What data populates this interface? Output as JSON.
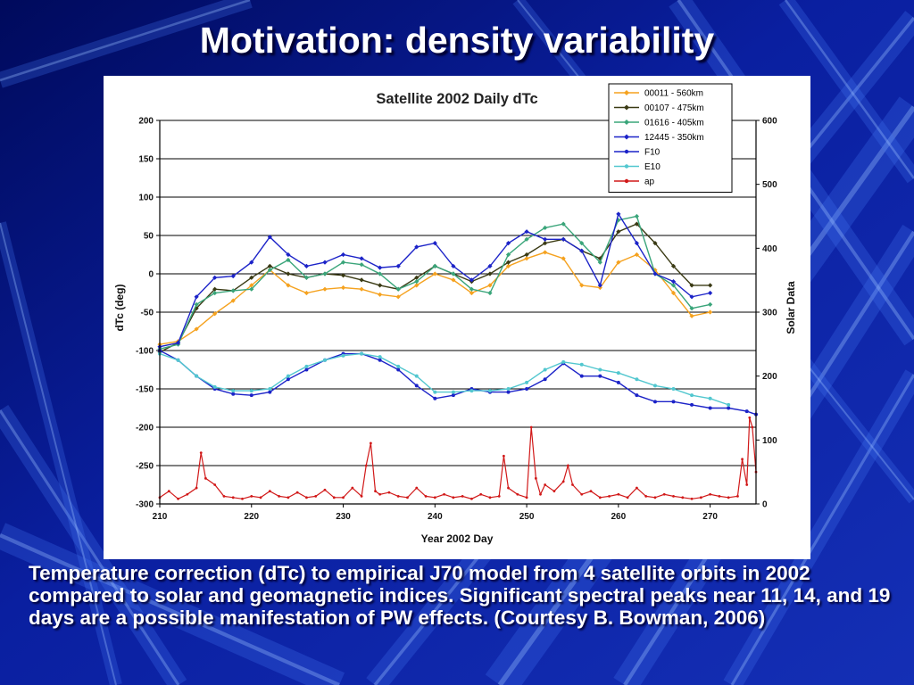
{
  "slide": {
    "title": "Motivation: density variability",
    "caption": "Temperature correction (dTc) to empirical J70 model from 4 satellite orbits in 2002 compared to solar and geomagnetic indices. Significant spectral  peaks near 11, 14, and 19 days are a possible manifestation of PW effects. (Courtesy B. Bowman, 2006)"
  },
  "colors": {
    "background_dark": "#000a5c",
    "background_light": "#2a5ce0",
    "series_00011": "#f5a21f",
    "series_00107": "#3a3a14",
    "series_01616": "#3aa57a",
    "series_12445": "#1c23c8",
    "series_F10": "#1c23c8",
    "series_E10": "#52c7cf",
    "series_ap": "#d11919"
  },
  "chart_data": {
    "type": "line",
    "title": "Satellite 2002 Daily dTc",
    "xlabel": "Year 2002 Day",
    "ylabel": "dTc (deg)",
    "y2label": "Solar Data",
    "xlim": [
      210,
      275
    ],
    "ylim": [
      -300,
      200
    ],
    "y2lim": [
      0,
      600
    ],
    "xticks": [
      210,
      220,
      230,
      240,
      250,
      260,
      270
    ],
    "yticks": [
      200,
      150,
      100,
      50,
      0,
      -50,
      -100,
      -150,
      -200,
      -250,
      -300
    ],
    "y2ticks": [
      600,
      500,
      400,
      300,
      200,
      100,
      0
    ],
    "grid": "horizontal",
    "legend_position": "top-right",
    "series": [
      {
        "name": "00011 - 560km",
        "axis": "left",
        "color": "#f5a21f",
        "x": [
          210,
          212,
          214,
          216,
          218,
          220,
          222,
          224,
          226,
          228,
          230,
          232,
          234,
          236,
          238,
          240,
          242,
          244,
          246,
          248,
          250,
          252,
          254,
          256,
          258,
          260,
          262,
          264,
          266,
          268,
          270
        ],
        "y": [
          -92,
          -88,
          -72,
          -52,
          -35,
          -15,
          5,
          -15,
          -25,
          -20,
          -18,
          -20,
          -27,
          -30,
          -15,
          0,
          -8,
          -25,
          -15,
          10,
          20,
          28,
          20,
          -15,
          -18,
          15,
          25,
          5,
          -25,
          -55,
          -50
        ]
      },
      {
        "name": "00107 - 475km",
        "axis": "left",
        "color": "#3a3a14",
        "x": [
          210,
          212,
          214,
          216,
          218,
          220,
          222,
          224,
          226,
          228,
          230,
          232,
          234,
          236,
          238,
          240,
          242,
          244,
          246,
          248,
          250,
          252,
          254,
          256,
          258,
          260,
          262,
          264,
          266,
          268,
          270
        ],
        "y": [
          -102,
          -90,
          -45,
          -20,
          -22,
          -5,
          10,
          0,
          -5,
          0,
          -2,
          -8,
          -15,
          -20,
          -5,
          10,
          0,
          -10,
          0,
          15,
          25,
          40,
          45,
          30,
          20,
          55,
          65,
          40,
          10,
          -15,
          -15
        ]
      },
      {
        "name": "01616 - 405km",
        "axis": "left",
        "color": "#3aa57a",
        "x": [
          210,
          212,
          214,
          216,
          218,
          220,
          222,
          224,
          226,
          228,
          230,
          232,
          234,
          236,
          238,
          240,
          242,
          244,
          246,
          248,
          250,
          252,
          254,
          256,
          258,
          260,
          262,
          264,
          266,
          268,
          270
        ],
        "y": [
          -98,
          -92,
          -40,
          -25,
          -22,
          -20,
          5,
          18,
          -5,
          0,
          15,
          12,
          0,
          -20,
          -10,
          10,
          0,
          -20,
          -25,
          25,
          45,
          60,
          65,
          40,
          15,
          70,
          75,
          0,
          -15,
          -45,
          -40
        ]
      },
      {
        "name": "12445 - 350km",
        "axis": "left",
        "color": "#1c23c8",
        "x": [
          210,
          212,
          214,
          216,
          218,
          220,
          222,
          224,
          226,
          228,
          230,
          232,
          234,
          236,
          238,
          240,
          242,
          244,
          246,
          248,
          250,
          252,
          254,
          256,
          258,
          260,
          262,
          264,
          266,
          268,
          270
        ],
        "y": [
          -95,
          -90,
          -30,
          -5,
          -3,
          15,
          48,
          25,
          10,
          15,
          25,
          20,
          8,
          10,
          35,
          40,
          10,
          -8,
          10,
          40,
          55,
          45,
          45,
          30,
          -15,
          78,
          40,
          0,
          -10,
          -30,
          -25
        ]
      },
      {
        "name": "F10",
        "axis": "right",
        "color": "#1c23c8",
        "x": [
          210,
          212,
          214,
          216,
          218,
          220,
          222,
          224,
          226,
          228,
          230,
          232,
          234,
          236,
          238,
          240,
          242,
          244,
          246,
          248,
          250,
          252,
          254,
          256,
          258,
          260,
          262,
          264,
          266,
          268,
          270,
          272,
          274,
          275
        ],
        "y": [
          240,
          225,
          200,
          180,
          172,
          170,
          175,
          195,
          210,
          225,
          235,
          235,
          225,
          210,
          185,
          165,
          170,
          180,
          175,
          175,
          180,
          195,
          220,
          200,
          200,
          190,
          170,
          160,
          160,
          155,
          150,
          150,
          145,
          140
        ]
      },
      {
        "name": "E10",
        "axis": "right",
        "color": "#52c7cf",
        "x": [
          210,
          212,
          214,
          216,
          218,
          220,
          222,
          224,
          226,
          228,
          230,
          232,
          234,
          236,
          238,
          240,
          242,
          244,
          246,
          248,
          250,
          252,
          254,
          256,
          258,
          260,
          262,
          264,
          266,
          268,
          270,
          272
        ],
        "y": [
          235,
          225,
          200,
          183,
          177,
          177,
          180,
          200,
          215,
          225,
          232,
          235,
          230,
          215,
          200,
          175,
          175,
          177,
          177,
          180,
          190,
          210,
          222,
          218,
          210,
          205,
          195,
          185,
          180,
          170,
          165,
          155
        ]
      },
      {
        "name": "ap",
        "axis": "right",
        "color": "#d11919",
        "x": [
          210,
          211,
          212,
          213,
          214,
          214.5,
          215,
          216,
          217,
          218,
          219,
          220,
          221,
          222,
          223,
          224,
          225,
          226,
          227,
          228,
          229,
          230,
          231,
          232,
          232.5,
          233,
          233.5,
          234,
          235,
          236,
          237,
          238,
          239,
          240,
          241,
          242,
          243,
          244,
          245,
          246,
          247,
          247.5,
          248,
          249,
          250,
          250.5,
          251,
          251.5,
          252,
          253,
          254,
          254.5,
          255,
          256,
          257,
          258,
          259,
          260,
          261,
          262,
          263,
          264,
          265,
          266,
          267,
          268,
          269,
          270,
          271,
          272,
          273,
          273.5,
          274,
          274.3,
          274.6,
          275
        ],
        "y": [
          10,
          20,
          8,
          15,
          25,
          80,
          40,
          30,
          12,
          10,
          8,
          12,
          10,
          20,
          12,
          10,
          18,
          10,
          12,
          22,
          10,
          10,
          25,
          12,
          60,
          95,
          20,
          15,
          18,
          12,
          10,
          25,
          12,
          10,
          15,
          10,
          12,
          8,
          15,
          10,
          12,
          75,
          25,
          15,
          10,
          120,
          40,
          15,
          30,
          20,
          35,
          60,
          30,
          15,
          20,
          10,
          12,
          15,
          10,
          25,
          12,
          10,
          15,
          12,
          10,
          8,
          10,
          15,
          12,
          10,
          12,
          70,
          30,
          135,
          120,
          50
        ]
      }
    ]
  }
}
